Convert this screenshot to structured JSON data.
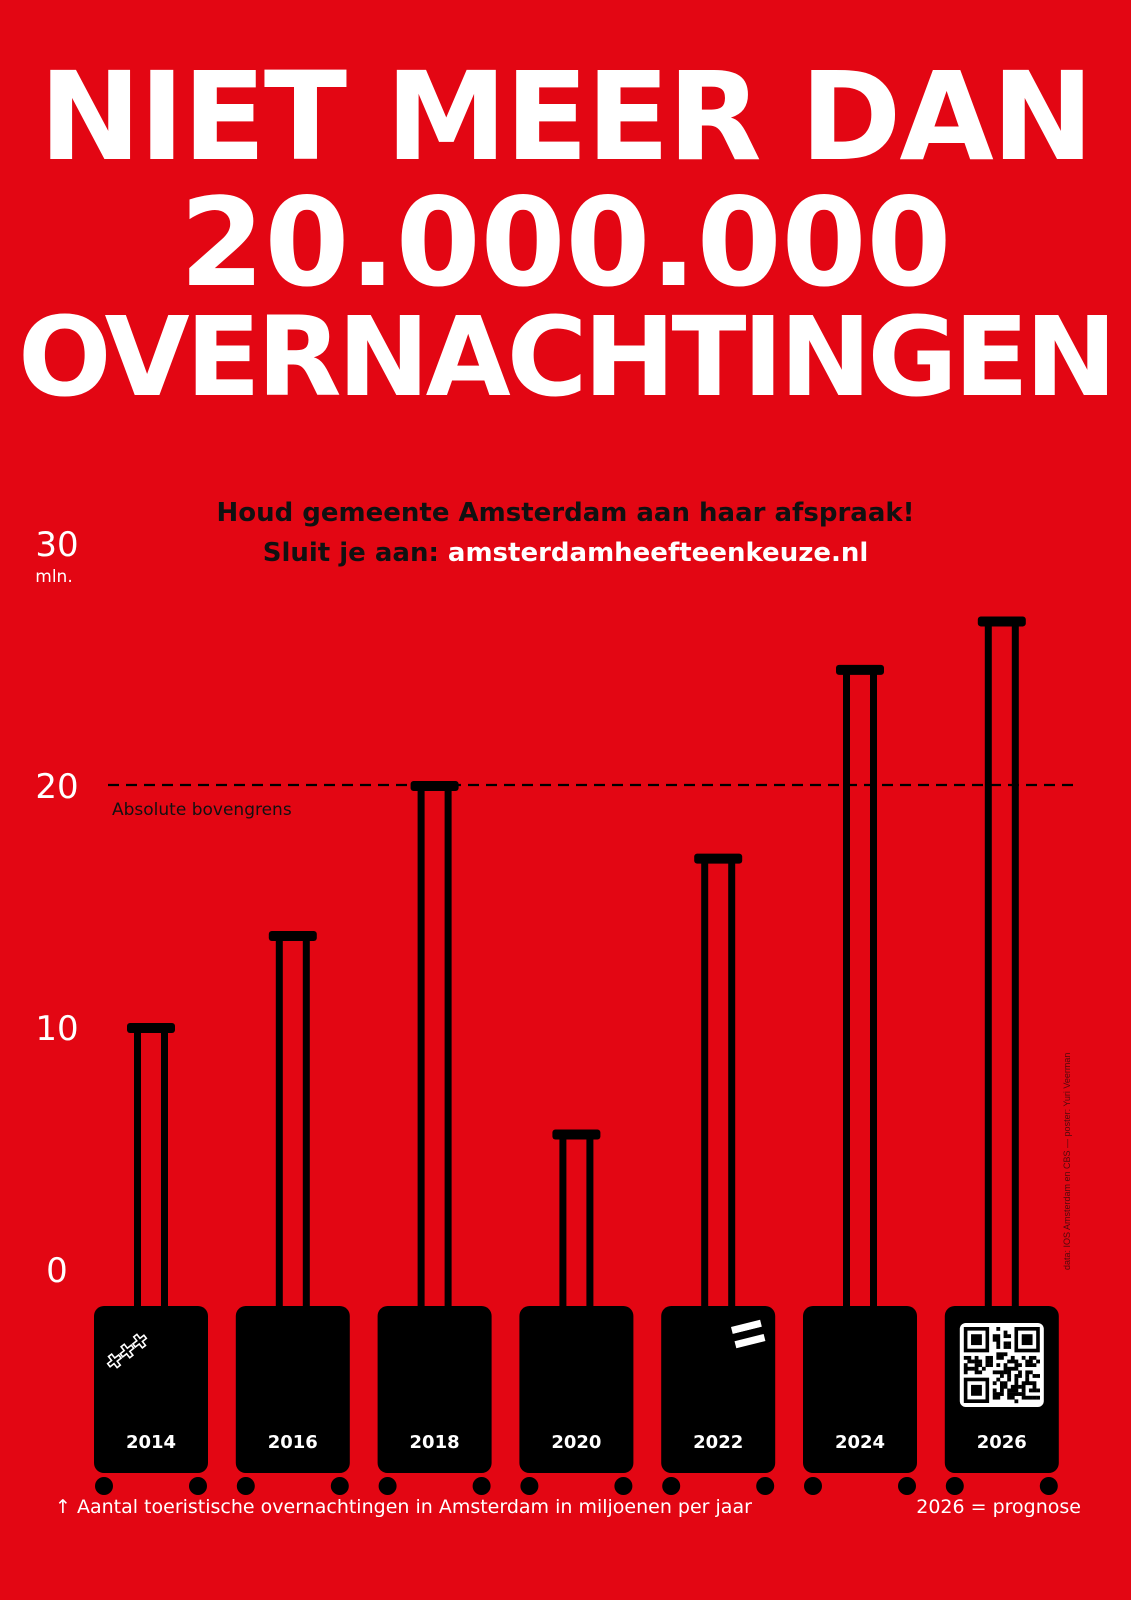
{
  "headline": {
    "line1": "NIET MEER DAN",
    "line2": "20.000.000",
    "line3": "OVERNACHTINGEN"
  },
  "subheading": {
    "line1": "Houd gemeente Amsterdam aan haar afspraak!",
    "line2_prefix": "Sluit je aan: ",
    "line2_url": "amsterdamheefteenkeuze.nl"
  },
  "footer": {
    "caption": "↑ Aantal toeristische overnachtingen in Amsterdam in miljoenen per jaar",
    "note": "2026 = prognose"
  },
  "credit": "data: IOS Amsterdam en CBS   —   poster: Yuri Veerman",
  "colors": {
    "background": "#e30613",
    "suitcase": "#000000",
    "text_light": "#ffffff",
    "text_dark": "#111111"
  },
  "chart_data": {
    "type": "bar",
    "categories": [
      "2014",
      "2016",
      "2018",
      "2020",
      "2022",
      "2024",
      "2026"
    ],
    "values": [
      10.0,
      13.8,
      20.0,
      5.6,
      17.0,
      24.8,
      26.8
    ],
    "unit_label": "mln.",
    "yticks": [
      0,
      10,
      20,
      30
    ],
    "ylim": [
      0,
      30
    ],
    "reference_line": {
      "value": 20,
      "label": "Absolute bovengrens"
    },
    "decorations": [
      "amsterdam-crosses-sticker",
      "flag-sticker",
      "qr-code-sticker"
    ]
  }
}
